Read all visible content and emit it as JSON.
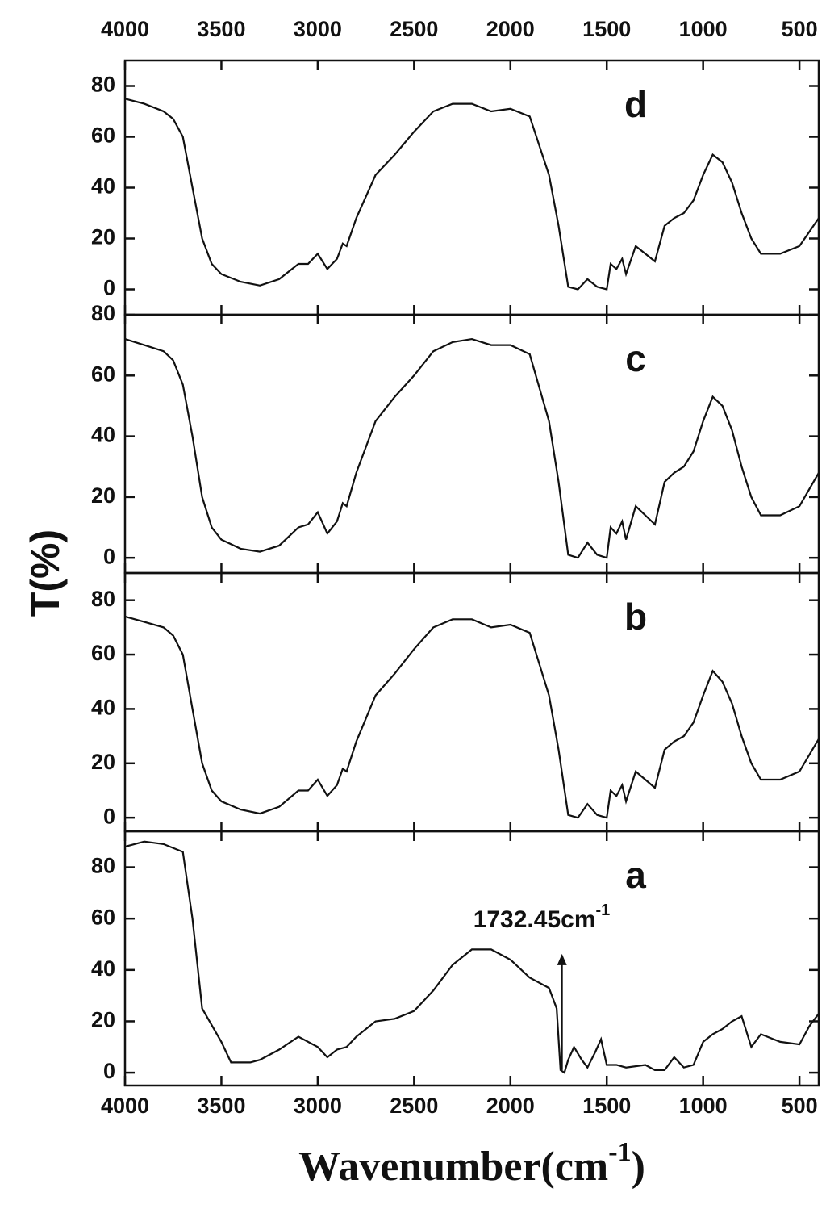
{
  "chart_data": [
    {
      "type": "line",
      "title": "d",
      "color": "#111",
      "xlim": [
        4000,
        400
      ],
      "ylim": [
        -10,
        90
      ],
      "yticks": [
        0,
        20,
        40,
        60,
        80
      ],
      "xticks": [
        4000,
        3500,
        3000,
        2500,
        2000,
        1500,
        1000,
        500
      ],
      "x": [
        4000,
        3900,
        3800,
        3750,
        3700,
        3650,
        3600,
        3550,
        3500,
        3400,
        3300,
        3200,
        3100,
        3050,
        3000,
        2950,
        2900,
        2870,
        2850,
        2800,
        2700,
        2600,
        2500,
        2400,
        2300,
        2200,
        2100,
        2000,
        1900,
        1800,
        1750,
        1700,
        1650,
        1600,
        1550,
        1500,
        1480,
        1450,
        1420,
        1400,
        1350,
        1300,
        1250,
        1200,
        1150,
        1100,
        1050,
        1000,
        950,
        900,
        850,
        800,
        750,
        700,
        600,
        500,
        400
      ],
      "values": [
        75,
        73,
        70,
        67,
        60,
        40,
        20,
        10,
        6,
        3,
        1.5,
        4,
        10,
        10,
        14,
        8,
        12,
        18,
        17,
        28,
        45,
        53,
        62,
        70,
        73,
        73,
        70,
        71,
        68,
        45,
        25,
        1,
        0,
        4,
        1,
        0,
        10,
        8,
        12,
        6,
        17,
        14,
        11,
        25,
        28,
        30,
        35,
        45,
        53,
        50,
        42,
        30,
        20,
        14,
        14,
        17,
        28
      ]
    },
    {
      "type": "line",
      "title": "c",
      "color": "#111",
      "xlim": [
        4000,
        400
      ],
      "ylim": [
        -5,
        80
      ],
      "yticks": [
        0,
        20,
        40,
        60,
        80
      ],
      "xticks": [
        4000,
        3500,
        3000,
        2500,
        2000,
        1500,
        1000,
        500
      ],
      "x": [
        4000,
        3900,
        3800,
        3750,
        3700,
        3650,
        3600,
        3550,
        3500,
        3400,
        3300,
        3200,
        3100,
        3050,
        3000,
        2950,
        2900,
        2870,
        2850,
        2800,
        2700,
        2600,
        2500,
        2400,
        2300,
        2200,
        2100,
        2000,
        1900,
        1800,
        1750,
        1700,
        1650,
        1600,
        1550,
        1500,
        1480,
        1450,
        1420,
        1400,
        1350,
        1300,
        1250,
        1200,
        1150,
        1100,
        1050,
        1000,
        950,
        900,
        850,
        800,
        750,
        700,
        600,
        500,
        400
      ],
      "values": [
        72,
        70,
        68,
        65,
        57,
        40,
        20,
        10,
        6,
        3,
        2,
        4,
        10,
        11,
        15,
        8,
        12,
        18,
        17,
        28,
        45,
        53,
        60,
        68,
        71,
        72,
        70,
        70,
        67,
        45,
        25,
        1,
        0,
        5,
        1,
        0,
        10,
        8,
        12,
        6,
        17,
        14,
        11,
        25,
        28,
        30,
        35,
        45,
        53,
        50,
        42,
        30,
        20,
        14,
        14,
        17,
        28
      ]
    },
    {
      "type": "line",
      "title": "b",
      "color": "#111",
      "xlim": [
        4000,
        400
      ],
      "ylim": [
        -5,
        90
      ],
      "yticks": [
        0,
        20,
        40,
        60,
        80
      ],
      "xticks": [
        4000,
        3500,
        3000,
        2500,
        2000,
        1500,
        1000,
        500
      ],
      "x": [
        4000,
        3900,
        3800,
        3750,
        3700,
        3650,
        3600,
        3550,
        3500,
        3400,
        3300,
        3200,
        3100,
        3050,
        3000,
        2950,
        2900,
        2870,
        2850,
        2800,
        2700,
        2600,
        2500,
        2400,
        2300,
        2200,
        2100,
        2000,
        1900,
        1800,
        1750,
        1700,
        1650,
        1600,
        1550,
        1500,
        1480,
        1450,
        1420,
        1400,
        1350,
        1300,
        1250,
        1200,
        1150,
        1100,
        1050,
        1000,
        950,
        900,
        850,
        800,
        750,
        700,
        600,
        500,
        400
      ],
      "values": [
        74,
        72,
        70,
        67,
        60,
        40,
        20,
        10,
        6,
        3,
        1.5,
        4,
        10,
        10,
        14,
        8,
        12,
        18,
        17,
        28,
        45,
        53,
        62,
        70,
        73,
        73,
        70,
        71,
        68,
        45,
        25,
        1,
        0,
        5,
        1,
        0,
        10,
        8,
        12,
        6,
        17,
        14,
        11,
        25,
        28,
        30,
        35,
        45,
        54,
        50,
        42,
        30,
        20,
        14,
        14,
        17,
        29
      ]
    },
    {
      "type": "line",
      "title": "a",
      "color": "#111",
      "xlim": [
        4000,
        400
      ],
      "ylim": [
        -5,
        94
      ],
      "yticks": [
        0,
        20,
        40,
        60,
        80
      ],
      "xticks": [
        4000,
        3500,
        3000,
        2500,
        2000,
        1500,
        1000,
        500
      ],
      "x": [
        4000,
        3900,
        3800,
        3700,
        3650,
        3600,
        3500,
        3450,
        3350,
        3300,
        3200,
        3100,
        3000,
        2950,
        2900,
        2850,
        2800,
        2700,
        2600,
        2500,
        2400,
        2300,
        2200,
        2100,
        2000,
        1900,
        1800,
        1760,
        1740,
        1720,
        1700,
        1670,
        1630,
        1600,
        1560,
        1530,
        1500,
        1450,
        1400,
        1300,
        1250,
        1200,
        1150,
        1100,
        1050,
        1000,
        950,
        900,
        850,
        800,
        750,
        700,
        600,
        500,
        450,
        400
      ],
      "values": [
        88,
        90,
        89,
        86,
        60,
        25,
        12,
        4,
        4,
        5,
        9,
        14,
        10,
        6,
        9,
        10,
        14,
        20,
        21,
        24,
        32,
        42,
        48,
        48,
        44,
        37,
        33,
        25,
        1,
        0,
        5,
        10,
        5,
        2,
        8,
        13,
        3,
        3,
        2,
        3,
        1,
        1,
        6,
        2,
        3,
        12,
        15,
        17,
        20,
        22,
        10,
        15,
        12,
        11,
        18,
        23
      ],
      "annotation": {
        "text": "1732.45cm",
        "superscript": "-1",
        "x": 1732.45,
        "y_from": 1,
        "y_to": 45
      }
    }
  ],
  "y_label": "T(%)",
  "x_label": {
    "text": "Wavenumber(cm",
    "superscript": "-1",
    "close": ")"
  }
}
